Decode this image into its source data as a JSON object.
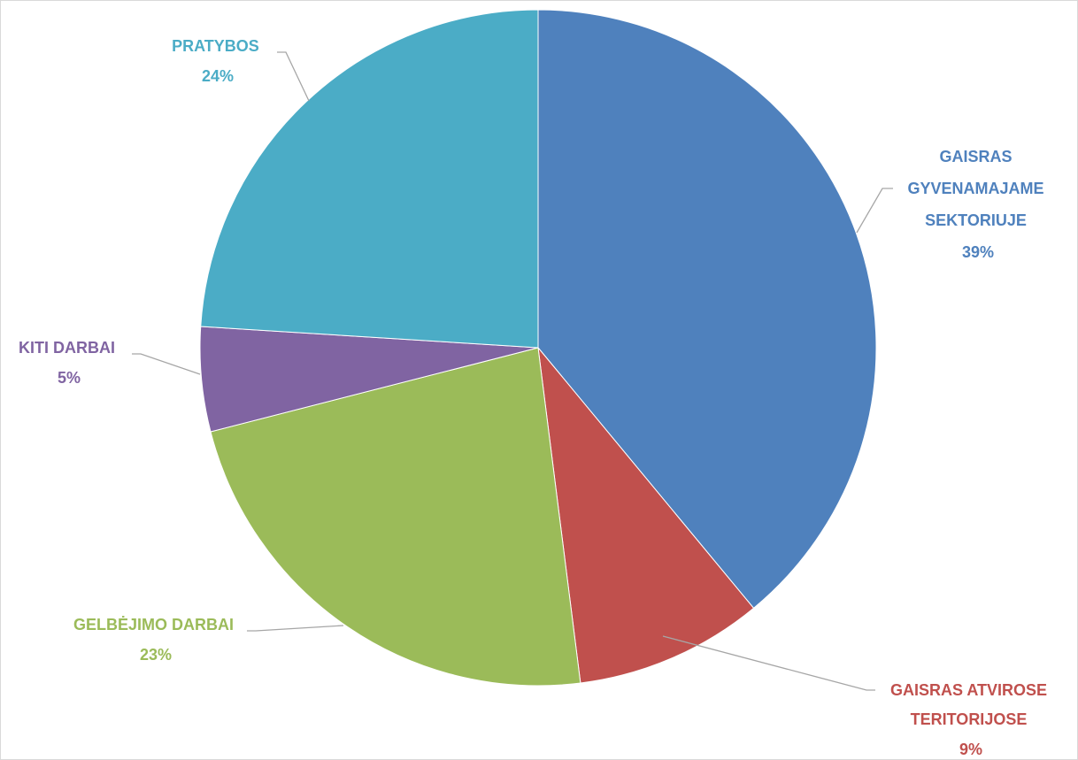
{
  "chart_data": {
    "type": "pie",
    "title": "",
    "slices": [
      {
        "label_lines": [
          "GAISRAS",
          "GYVENAMAJAME",
          "SEKTORIUJE"
        ],
        "percent_label": "39%",
        "value": 39,
        "color": "#4f81bd"
      },
      {
        "label_lines": [
          "GAISRAS ATVIROSE",
          "TERITORIJOSE"
        ],
        "percent_label": "9%",
        "value": 9,
        "color": "#c0504d"
      },
      {
        "label_lines": [
          "GELBĖJIMO DARBAI"
        ],
        "percent_label": "23%",
        "value": 23,
        "color": "#9bbb59"
      },
      {
        "label_lines": [
          "KITI DARBAI"
        ],
        "percent_label": "5%",
        "value": 5,
        "color": "#8064a2"
      },
      {
        "label_lines": [
          "PRATYBOS"
        ],
        "percent_label": "24%",
        "value": 24,
        "color": "#4bacc6"
      }
    ]
  }
}
